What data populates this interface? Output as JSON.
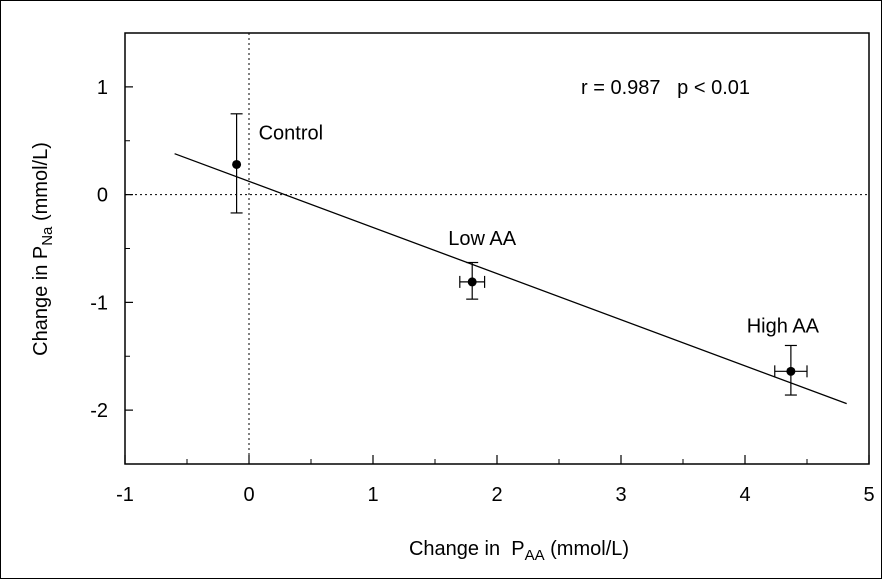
{
  "chart_data": {
    "type": "scatter",
    "xlabel": {
      "prefix": "Change in  P",
      "sub": "AA",
      "suffix": " (mmol/L)"
    },
    "ylabel": {
      "prefix": "Change in P",
      "sub": "Na",
      "suffix": " (mmol/L)"
    },
    "xlim": [
      -1,
      5
    ],
    "ylim": [
      -2.5,
      1.5
    ],
    "xticks": [
      -1,
      0,
      1,
      2,
      3,
      4,
      5
    ],
    "xtick_labels": [
      "-1",
      "0",
      "1",
      "2",
      "3",
      "4",
      "5"
    ],
    "yticks": [
      1,
      0,
      -1,
      -2
    ],
    "ytick_labels": [
      "1",
      "0",
      "-1",
      "-2"
    ],
    "reference_lines": {
      "x": 0,
      "y": 0,
      "style": "dotted"
    },
    "points": [
      {
        "label": "Control",
        "x": -0.1,
        "y": 0.28,
        "xerr": 0,
        "yerr_low": 0.45,
        "yerr_high": 0.47
      },
      {
        "label": "Low AA",
        "x": 1.8,
        "y": -0.81,
        "xerr": 0.1,
        "yerr_low": 0.16,
        "yerr_high": 0.18
      },
      {
        "label": "High AA",
        "x": 4.37,
        "y": -1.64,
        "xerr": 0.13,
        "yerr_low": 0.22,
        "yerr_high": 0.24
      }
    ],
    "regression_line": {
      "x": [
        -0.6,
        4.82
      ],
      "y": [
        0.38,
        -1.94
      ]
    },
    "annotation": "r = 0.987   p < 0.01",
    "grid": false
  }
}
